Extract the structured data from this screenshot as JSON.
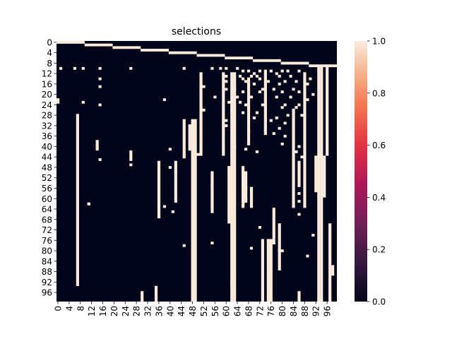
{
  "chart_data": {
    "type": "heatmap",
    "title": "selections",
    "xlabel": "",
    "ylabel": "",
    "n_rows": 100,
    "n_cols": 100,
    "x_tick_labels": [
      "0",
      "4",
      "8",
      "12",
      "16",
      "20",
      "24",
      "28",
      "32",
      "36",
      "40",
      "44",
      "48",
      "52",
      "56",
      "60",
      "64",
      "68",
      "72",
      "76",
      "80",
      "84",
      "88",
      "92",
      "96"
    ],
    "y_tick_labels": [
      "0",
      "4",
      "8",
      "12",
      "16",
      "20",
      "24",
      "28",
      "32",
      "36",
      "40",
      "44",
      "48",
      "52",
      "56",
      "60",
      "64",
      "68",
      "72",
      "76",
      "80",
      "84",
      "88",
      "92",
      "96"
    ],
    "colorbar": {
      "min": 0.0,
      "max": 1.0,
      "tick_labels": [
        "0.0",
        "0.2",
        "0.4",
        "0.6",
        "0.8",
        "1.0"
      ],
      "colormap": "rocket"
    },
    "values_encoding": "sparse: cells with value 1.0; all others 0.0",
    "ones_diagonal_steps": [
      {
        "rows": [
          0,
          1
        ],
        "cols": [
          0,
          9
        ]
      },
      {
        "rows": [
          1,
          2
        ],
        "cols": [
          10,
          19
        ]
      },
      {
        "rows": [
          2,
          3
        ],
        "cols": [
          20,
          29
        ]
      },
      {
        "rows": [
          3,
          4
        ],
        "cols": [
          30,
          39
        ]
      },
      {
        "rows": [
          4,
          5
        ],
        "cols": [
          40,
          49
        ]
      },
      {
        "rows": [
          5,
          6
        ],
        "cols": [
          50,
          59
        ]
      },
      {
        "rows": [
          6,
          7
        ],
        "cols": [
          60,
          69
        ]
      },
      {
        "rows": [
          7,
          8
        ],
        "cols": [
          70,
          79
        ]
      },
      {
        "rows": [
          8,
          9
        ],
        "cols": [
          80,
          89
        ]
      },
      {
        "rows": [
          9,
          10
        ],
        "cols": [
          90,
          99
        ]
      }
    ],
    "ones_vertical_segments": [
      {
        "col": 7,
        "rows": [
          28,
          94
        ]
      },
      {
        "col": 45,
        "rows": [
          30,
          45
        ]
      },
      {
        "col": 47,
        "rows": [
          32,
          42
        ]
      },
      {
        "col": 48,
        "rows": [
          30,
          100
        ]
      },
      {
        "col": 49,
        "rows": [
          30,
          100
        ]
      },
      {
        "col": 51,
        "rows": [
          12,
          44
        ]
      },
      {
        "col": 59,
        "rows": [
          12,
          44
        ]
      },
      {
        "col": 62,
        "rows": [
          12,
          100
        ]
      },
      {
        "col": 63,
        "rows": [
          12,
          100
        ]
      },
      {
        "col": 68,
        "rows": [
          14,
          40
        ]
      },
      {
        "col": 74,
        "rows": [
          12,
          36
        ]
      },
      {
        "col": 75,
        "rows": [
          76,
          100
        ]
      },
      {
        "col": 76,
        "rows": [
          76,
          100
        ]
      },
      {
        "col": 84,
        "rows": [
          26,
          64
        ]
      },
      {
        "col": 88,
        "rows": [
          12,
          64
        ]
      },
      {
        "col": 93,
        "rows": [
          10,
          100
        ]
      },
      {
        "col": 94,
        "rows": [
          10,
          100
        ]
      },
      {
        "col": 96,
        "rows": [
          10,
          44
        ]
      },
      {
        "col": 97,
        "rows": [
          70,
          100
        ]
      }
    ],
    "ones_extra_segments": [
      {
        "col": 36,
        "rows": [
          46,
          68
        ]
      },
      {
        "col": 42,
        "rows": [
          46,
          62
        ]
      },
      {
        "col": 55,
        "rows": [
          50,
          66
        ]
      },
      {
        "col": 61,
        "rows": [
          48,
          70
        ]
      },
      {
        "col": 66,
        "rows": [
          48,
          64
        ]
      },
      {
        "col": 67,
        "rows": [
          50,
          62
        ]
      },
      {
        "col": 69,
        "rows": [
          56,
          64
        ]
      },
      {
        "col": 73,
        "rows": [
          76,
          100
        ]
      },
      {
        "col": 77,
        "rows": [
          64,
          78
        ]
      },
      {
        "col": 79,
        "rows": [
          70,
          88
        ]
      },
      {
        "col": 86,
        "rows": [
          46,
          56
        ]
      },
      {
        "col": 92,
        "rows": [
          44,
          58
        ]
      },
      {
        "col": 95,
        "rows": [
          44,
          60
        ]
      },
      {
        "col": 98,
        "rows": [
          86,
          90
        ]
      },
      {
        "col": 26,
        "rows": [
          42,
          46
        ]
      },
      {
        "col": 14,
        "rows": [
          38,
          42
        ]
      },
      {
        "col": 0,
        "rows": [
          22,
          24
        ]
      },
      {
        "col": 11,
        "rows": [
          62,
          63
        ]
      },
      {
        "col": 35,
        "rows": [
          94,
          100
        ]
      },
      {
        "col": 30,
        "rows": [
          96,
          100
        ]
      },
      {
        "col": 86,
        "rows": [
          96,
          100
        ]
      }
    ],
    "ones_scatter_points": [
      [
        10,
        1
      ],
      [
        10,
        6
      ],
      [
        10,
        9
      ],
      [
        10,
        15
      ],
      [
        10,
        26
      ],
      [
        10,
        45
      ],
      [
        10,
        55
      ],
      [
        10,
        58
      ],
      [
        10,
        60
      ],
      [
        10,
        64
      ],
      [
        11,
        66
      ],
      [
        11,
        68
      ],
      [
        11,
        72
      ],
      [
        11,
        74
      ],
      [
        11,
        76
      ],
      [
        11,
        80
      ],
      [
        11,
        82
      ],
      [
        11,
        86
      ],
      [
        12,
        70
      ],
      [
        12,
        78
      ],
      [
        13,
        60
      ],
      [
        13,
        65
      ],
      [
        13,
        69
      ],
      [
        13,
        71
      ],
      [
        13,
        79
      ],
      [
        13,
        83
      ],
      [
        14,
        15
      ],
      [
        14,
        66
      ],
      [
        14,
        72
      ],
      [
        14,
        90
      ],
      [
        15,
        60
      ],
      [
        15,
        67
      ],
      [
        15,
        75
      ],
      [
        15,
        81
      ],
      [
        15,
        85
      ],
      [
        16,
        70
      ],
      [
        16,
        79
      ],
      [
        16,
        89
      ],
      [
        17,
        15
      ],
      [
        17,
        52
      ],
      [
        18,
        60
      ],
      [
        18,
        63
      ],
      [
        18,
        73
      ],
      [
        18,
        77
      ],
      [
        18,
        84
      ],
      [
        19,
        66
      ],
      [
        19,
        72
      ],
      [
        19,
        80
      ],
      [
        19,
        86
      ],
      [
        20,
        91
      ],
      [
        21,
        56
      ],
      [
        21,
        64
      ],
      [
        21,
        69
      ],
      [
        21,
        78
      ],
      [
        21,
        83
      ],
      [
        22,
        38
      ],
      [
        22,
        89
      ],
      [
        23,
        9
      ],
      [
        23,
        61
      ],
      [
        23,
        65
      ],
      [
        24,
        15
      ],
      [
        24,
        67
      ],
      [
        24,
        73
      ],
      [
        24,
        81
      ],
      [
        24,
        86
      ],
      [
        25,
        80
      ],
      [
        25,
        85
      ],
      [
        26,
        52
      ],
      [
        26,
        62
      ],
      [
        27,
        66
      ],
      [
        27,
        71
      ],
      [
        28,
        82
      ],
      [
        28,
        87
      ],
      [
        29,
        70
      ],
      [
        29,
        78
      ],
      [
        30,
        60
      ],
      [
        30,
        76
      ],
      [
        31,
        81
      ],
      [
        32,
        60
      ],
      [
        33,
        79
      ],
      [
        34,
        68
      ],
      [
        35,
        77
      ],
      [
        36,
        81
      ],
      [
        39,
        80
      ],
      [
        40,
        63
      ],
      [
        40,
        86
      ],
      [
        41,
        40
      ],
      [
        41,
        67
      ],
      [
        42,
        71
      ],
      [
        42,
        85
      ],
      [
        43,
        50
      ],
      [
        44,
        87
      ],
      [
        45,
        15
      ],
      [
        47,
        26
      ],
      [
        48,
        40
      ],
      [
        50,
        42
      ],
      [
        55,
        55
      ],
      [
        56,
        67
      ],
      [
        58,
        86
      ],
      [
        60,
        67
      ],
      [
        61,
        86
      ],
      [
        62,
        66
      ],
      [
        62,
        11
      ],
      [
        63,
        38
      ],
      [
        65,
        41
      ],
      [
        66,
        86
      ],
      [
        69,
        62
      ],
      [
        71,
        72
      ],
      [
        74,
        91
      ],
      [
        77,
        55
      ],
      [
        78,
        45
      ],
      [
        79,
        69
      ],
      [
        80,
        80
      ],
      [
        80,
        79
      ],
      [
        82,
        89
      ],
      [
        92,
        62
      ]
    ]
  }
}
